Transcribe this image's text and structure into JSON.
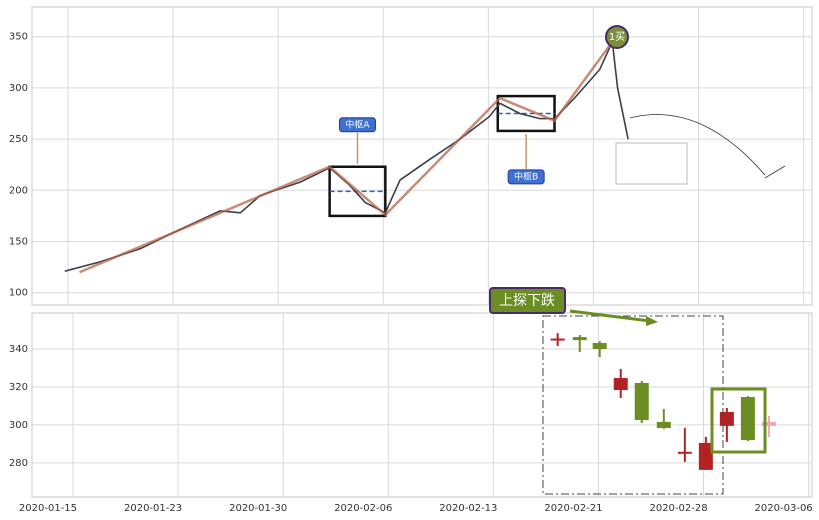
{
  "chart_data": [
    {
      "type": "line",
      "xlim": [
        -0.152,
        7.27
      ],
      "ylim": [
        88,
        379
      ],
      "yticks": [
        100,
        150,
        200,
        250,
        300,
        350
      ],
      "grid": true,
      "series": [
        {
          "color": "#3a3f4a",
          "x": [
            0.16,
            0.49,
            0.88,
            1.26,
            1.64,
            1.83,
            2.02,
            2.4,
            2.68,
            2.87,
            3.02,
            3.21,
            3.35,
            3.63,
            3.92,
            4.2,
            4.3,
            4.49,
            4.68,
            4.82,
            5.01,
            5.25,
            5.37,
            5.42,
            5.48,
            5.52
          ],
          "values": [
            121,
            130,
            143,
            162,
            180,
            178,
            195,
            208,
            222,
            205,
            188,
            178,
            210,
            230,
            250,
            272,
            285,
            275,
            270,
            270,
            290,
            318,
            345,
            300,
            270,
            250
          ]
        },
        {
          "color": "#b5654a",
          "x": [
            0.3,
            2.68,
            3.21,
            4.3,
            4.82,
            5.37
          ],
          "values": [
            120,
            223,
            176,
            290,
            268,
            345
          ]
        }
      ],
      "zones": [
        {
          "label": "中枢A",
          "x0": 2.68,
          "x1": 3.21,
          "y0": 175,
          "y1": 223
        },
        {
          "label": "中枢B",
          "x0": 4.28,
          "x1": 4.82,
          "y0": 258,
          "y1": 292
        }
      ],
      "buy_label": "1买"
    },
    {
      "type": "candlestick",
      "xlim": [
        -0.152,
        7.27
      ],
      "ylim": [
        262,
        359
      ],
      "yticks": [
        280,
        300,
        320,
        340
      ],
      "grid": true,
      "xticks": [
        {
          "value": 0,
          "label": "2020-01-15"
        },
        {
          "value": 1,
          "label": "2020-01-23"
        },
        {
          "value": 2,
          "label": "2020-01-30"
        },
        {
          "value": 3,
          "label": "2020-02-06"
        },
        {
          "value": 4,
          "label": "2020-02-13"
        },
        {
          "value": 5,
          "label": "2020-02-21"
        },
        {
          "value": 6,
          "label": "2020-02-28"
        },
        {
          "value": 7,
          "label": "2020-03-06"
        }
      ],
      "x": [
        4.85,
        5.06,
        5.25,
        5.45,
        5.65,
        5.86,
        6.06,
        6.26,
        6.46,
        6.66,
        6.86
      ],
      "open": [
        345,
        346.3,
        343.2,
        318.4,
        302.6,
        301.6,
        285.3,
        276.3,
        299.5,
        292,
        299.5
      ],
      "close": [
        345,
        344.7,
        340,
        324.7,
        322.1,
        298.4,
        285.3,
        290.5,
        306.8,
        314.7,
        301.6
      ],
      "high": [
        348.4,
        347.4,
        344.2,
        329.5,
        323.2,
        308.4,
        298.4,
        293.7,
        308.9,
        315.2,
        304.7
      ],
      "low": [
        341.6,
        338.4,
        335.8,
        314.2,
        301,
        297.9,
        280.5,
        276.3,
        291,
        291.5,
        293.7
      ],
      "colors": [
        "#b22222",
        "#6b8e23",
        "#6b8e23",
        "#b22222",
        "#6b8e23",
        "#6b8e23",
        "#b22222",
        "#b22222",
        "#b22222",
        "#6b8e23",
        "#f4a6b0"
      ],
      "annotation": "上探下跌"
    }
  ]
}
